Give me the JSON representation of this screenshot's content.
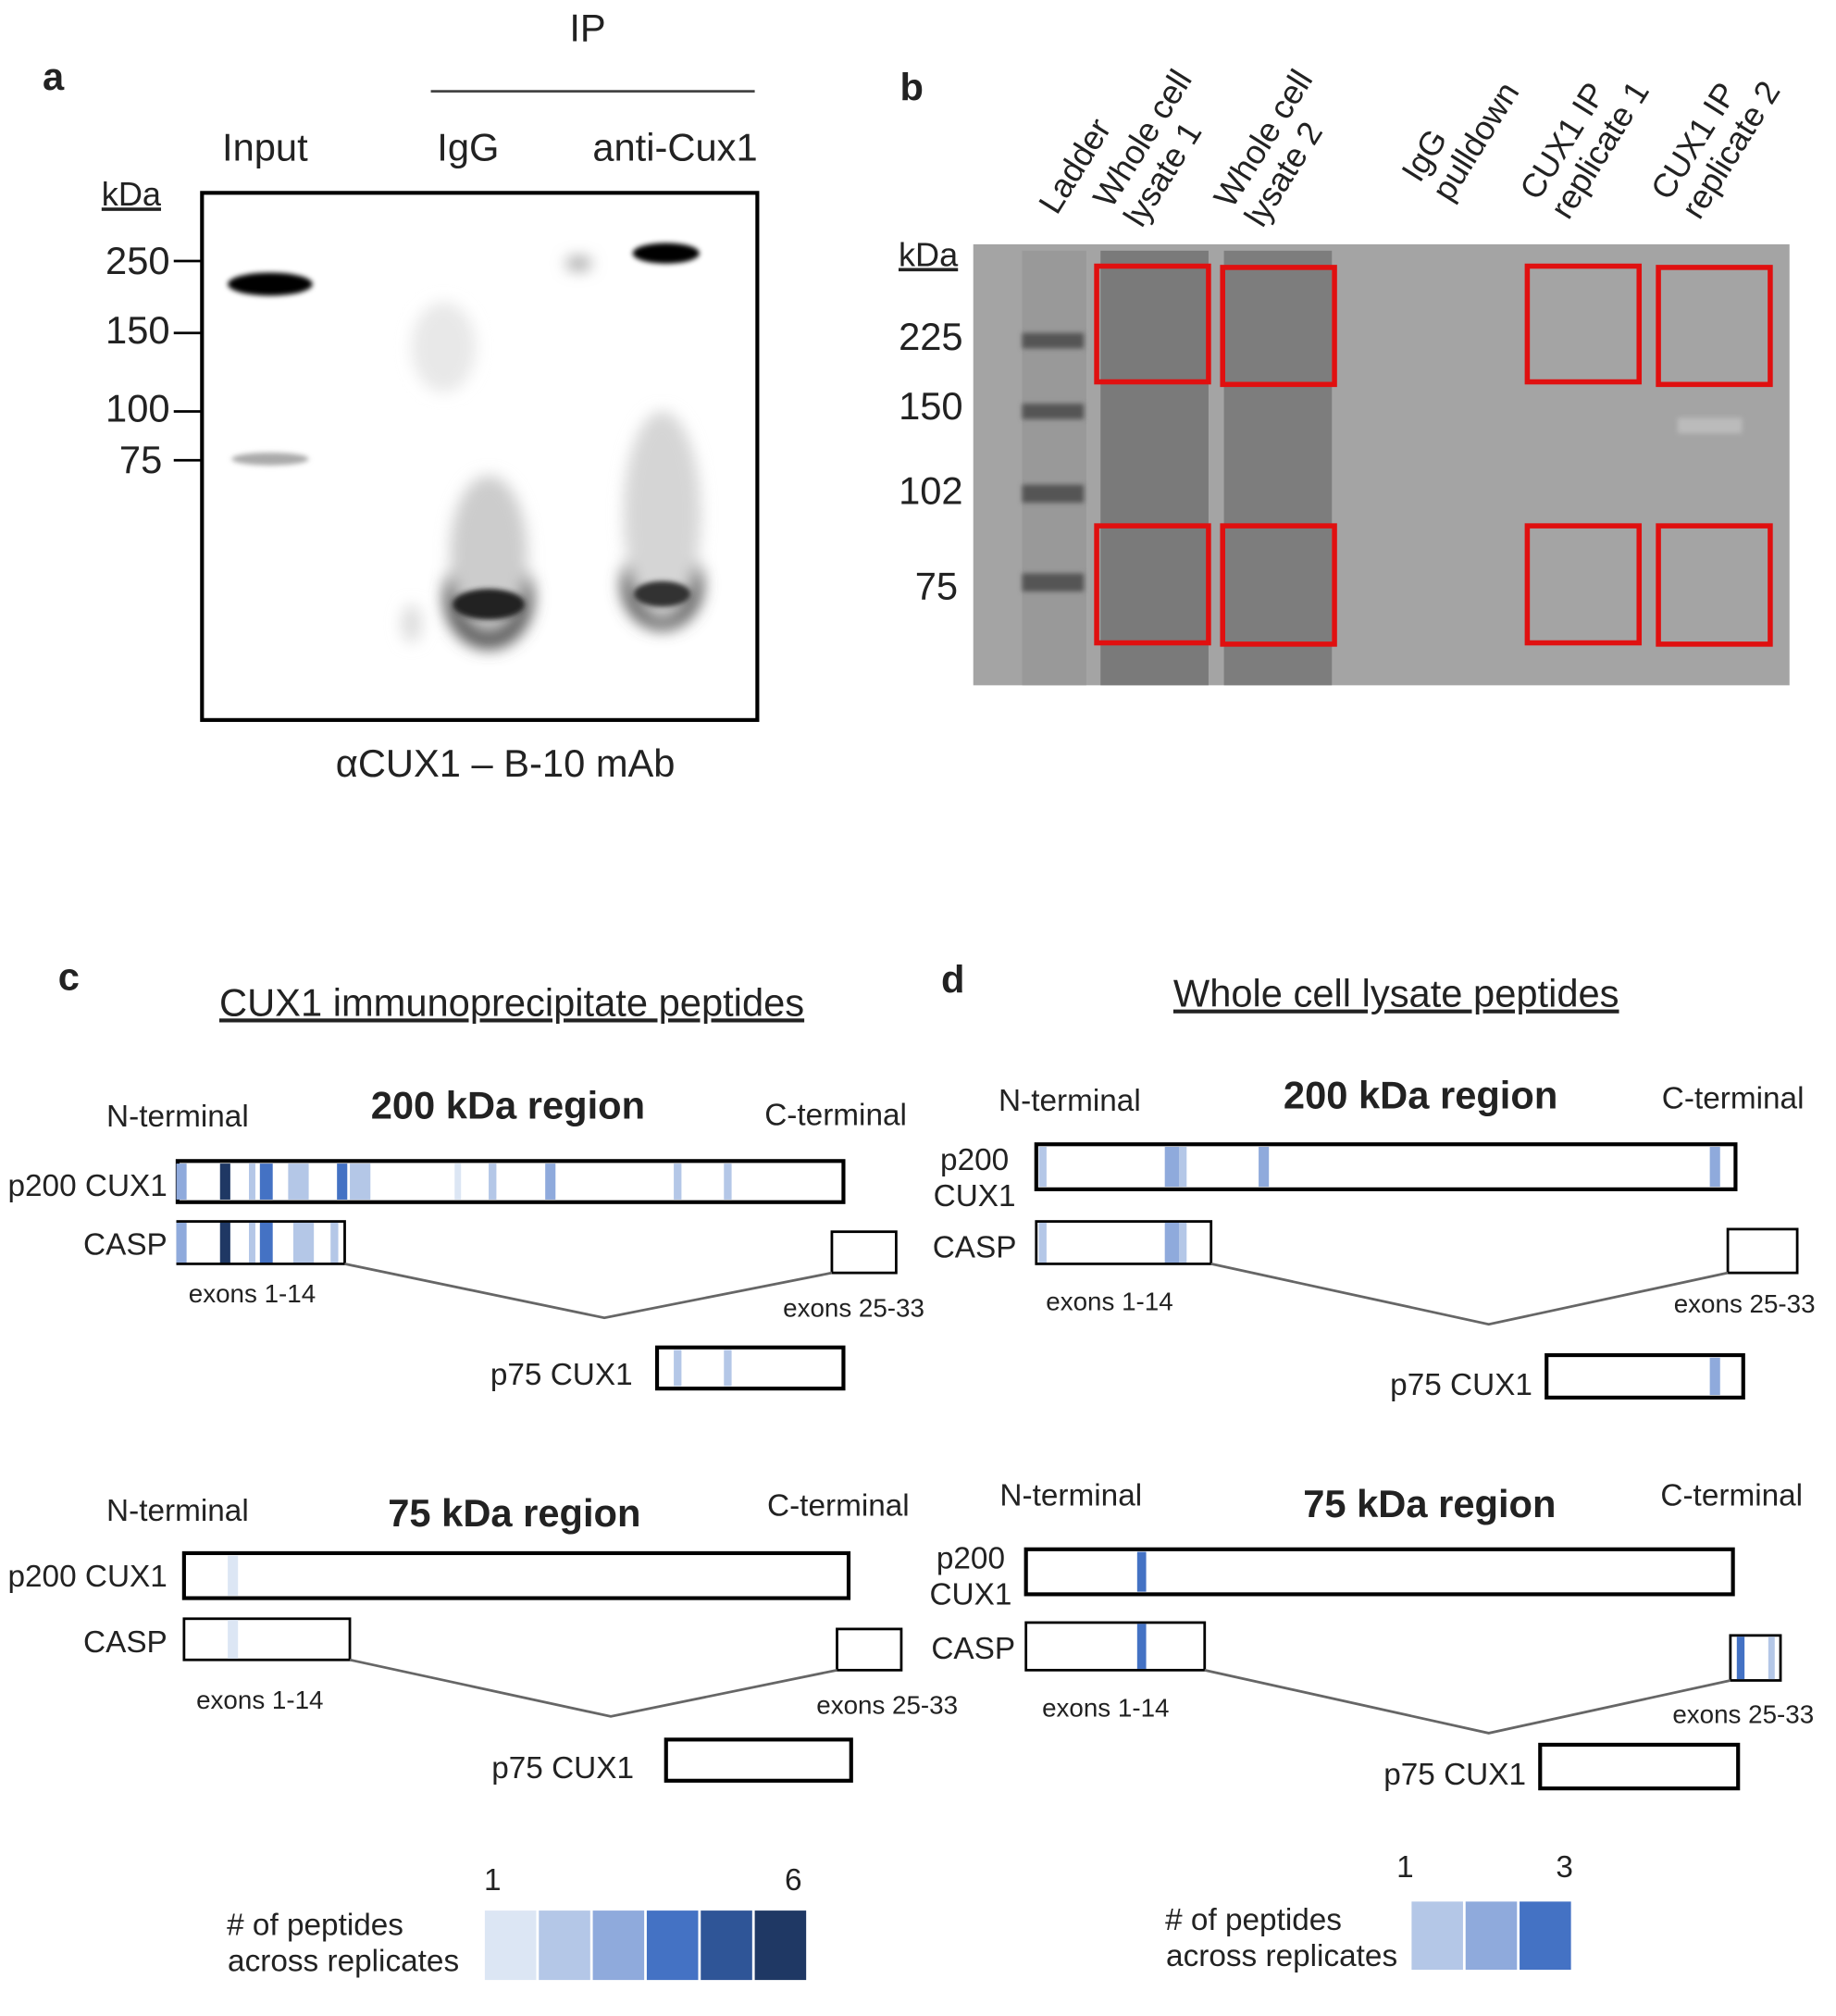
{
  "panel_a": {
    "label": "a",
    "ip_label": "IP",
    "lanes": [
      "Input",
      "IgG",
      "anti-Cux1"
    ],
    "unit": "kDa",
    "markers": [
      "250",
      "150",
      "100",
      "75"
    ],
    "caption": "αCUX1 – B-10 mAb"
  },
  "panel_b": {
    "label": "b",
    "unit": "kDa",
    "lanes": [
      [
        "Ladder"
      ],
      [
        "Whole cell",
        "lysate 1"
      ],
      [
        "Whole cell",
        "lysate 2"
      ],
      [
        "IgG",
        "pulldown"
      ],
      [
        "CUX1 IP",
        "replicate 1"
      ],
      [
        "CUX1 IP",
        "replicate 2"
      ]
    ],
    "markers": [
      "225",
      "150",
      "102",
      "75"
    ]
  },
  "panel_c": {
    "label": "c",
    "title": "CUX1 immunoprecipitate peptides",
    "regions": [
      {
        "title": "200 kDa region",
        "n_terminal": "N-terminal",
        "c_terminal": "C-terminal",
        "p200": "p200 CUX1",
        "casp": "CASP",
        "exons_left": "exons 1-14",
        "exons_right": "exons 25-33",
        "p75": "p75 CUX1"
      },
      {
        "title": "75 kDa region",
        "n_terminal": "N-terminal",
        "c_terminal": "C-terminal",
        "p200": "p200 CUX1",
        "casp": "CASP",
        "exons_left": "exons 1-14",
        "exons_right": "exons 25-33",
        "p75": "p75 CUX1"
      }
    ],
    "legend": {
      "title": [
        "# of peptides",
        "across replicates"
      ],
      "min": "1",
      "max": "6"
    }
  },
  "panel_d": {
    "label": "d",
    "title": "Whole cell lysate peptides",
    "regions": [
      {
        "title": "200 kDa region",
        "n_terminal": "N-terminal",
        "c_terminal": "C-terminal",
        "p200": [
          "p200",
          "CUX1"
        ],
        "casp": "CASP",
        "exons_left": "exons 1-14",
        "exons_right": "exons 25-33",
        "p75": "p75 CUX1"
      },
      {
        "title": "75 kDa region",
        "n_terminal": "N-terminal",
        "c_terminal": "C-terminal",
        "p200": [
          "p200",
          "CUX1"
        ],
        "casp": "CASP",
        "exons_left": "exons 1-14",
        "exons_right": "exons 25-33",
        "p75": "p75 CUX1"
      }
    ],
    "legend": {
      "title": [
        "# of peptides",
        "across replicates"
      ],
      "min": "1",
      "max": "3"
    }
  }
}
